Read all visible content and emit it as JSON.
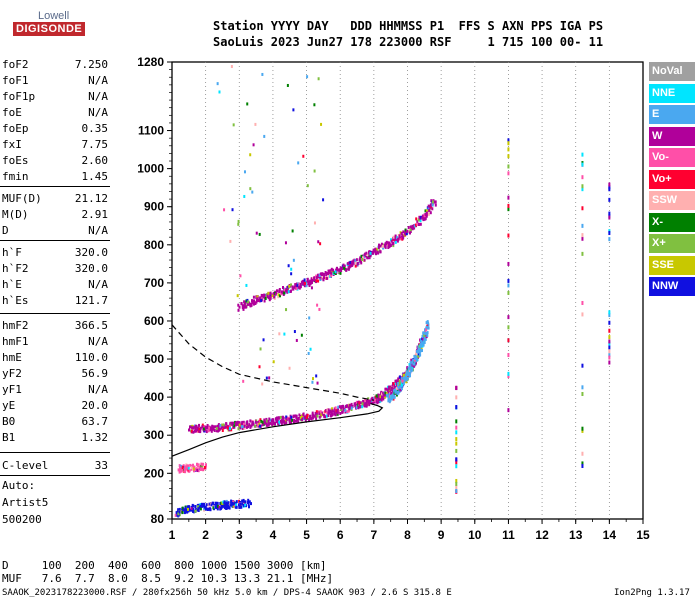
{
  "logo": {
    "top": "Lowell",
    "main": "DIGISONDE"
  },
  "header": {
    "line1": "Station YYYY DAY   DDD HHMMSS P1  FFS S AXN PPS IGA PS",
    "line2": "SaoLuis 2023 Jun27 178 223000 RSF     1 715 100 00- 11"
  },
  "params": [
    {
      "k": "foF2",
      "v": "7.250"
    },
    {
      "k": "foF1",
      "v": "N/A"
    },
    {
      "k": "foF1p",
      "v": "N/A"
    },
    {
      "k": "foE",
      "v": "N/A"
    },
    {
      "k": "foEp",
      "v": "0.35"
    },
    {
      "k": "fxI",
      "v": "7.75"
    },
    {
      "k": "foEs",
      "v": "2.60"
    },
    {
      "k": "fmin",
      "v": "1.45"
    },
    {
      "k": "MUF(D)",
      "v": "21.12"
    },
    {
      "k": "M(D)",
      "v": "2.91"
    },
    {
      "k": "D",
      "v": "N/A"
    },
    {
      "k": "h`F",
      "v": "320.0"
    },
    {
      "k": "h`F2",
      "v": "320.0"
    },
    {
      "k": "h`E",
      "v": "N/A"
    },
    {
      "k": "h`Es",
      "v": "121.7"
    },
    {
      "k": "hmF2",
      "v": "366.5"
    },
    {
      "k": "hmF1",
      "v": "N/A"
    },
    {
      "k": "hmE",
      "v": "110.0"
    },
    {
      "k": "yF2",
      "v": "56.9"
    },
    {
      "k": "yF1",
      "v": "N/A"
    },
    {
      "k": "yE",
      "v": "20.0"
    },
    {
      "k": "B0",
      "v": "63.7"
    },
    {
      "k": "B1",
      "v": "1.32"
    },
    {
      "k": "C-level",
      "v": "33"
    }
  ],
  "auto": {
    "label": "Auto:",
    "software": "Artist5",
    "version": "500200"
  },
  "legend": [
    {
      "label": "NoVal",
      "color": "#a0a0a0"
    },
    {
      "label": "NNE",
      "color": "#00e5ff"
    },
    {
      "label": "E",
      "color": "#4aa8f0"
    },
    {
      "label": "W",
      "color": "#b0009a"
    },
    {
      "label": "Vo-",
      "color": "#ff4fa8"
    },
    {
      "label": "Vo+",
      "color": "#ff0030"
    },
    {
      "label": "SSW",
      "color": "#ffb0b0"
    },
    {
      "label": "X-",
      "color": "#008000"
    },
    {
      "label": "X+",
      "color": "#80c040"
    },
    {
      "label": "SSE",
      "color": "#c8c800"
    },
    {
      "label": "NNW",
      "color": "#1010e0"
    }
  ],
  "footer": {
    "d_row": "D     100  200  400  600  800 1000 1500 3000 [km]",
    "muf_row": "MUF   7.6  7.7  8.0  8.5  9.2 10.3 13.3 21.1 [MHz]",
    "file_line": "SAAOK_2023178223000.RSF / 280fx256h 50 kHz 5.0 km / DPS-4 SAAOK 903 / 2.6 S 315.8 E",
    "version": "Ion2Png 1.3.17"
  },
  "chart_data": {
    "type": "scatter",
    "xlim": [
      1,
      15
    ],
    "ylim": [
      80,
      1280
    ],
    "x_ticks": [
      1,
      2,
      3,
      4,
      5,
      6,
      7,
      8,
      9,
      10,
      11,
      12,
      13,
      14,
      15
    ],
    "y_ticks": [
      80,
      200,
      300,
      400,
      500,
      600,
      700,
      800,
      900,
      1000,
      1100,
      1280
    ],
    "grid": "vertical-dotted",
    "traces": [
      {
        "name": "F2 O-mode",
        "color": "#b0009a",
        "points": [
          [
            1.5,
            320
          ],
          [
            2,
            322
          ],
          [
            2.5,
            325
          ],
          [
            3,
            330
          ],
          [
            3.5,
            335
          ],
          [
            4,
            340
          ],
          [
            4.5,
            345
          ],
          [
            5,
            352
          ],
          [
            5.5,
            360
          ],
          [
            6,
            370
          ],
          [
            6.5,
            382
          ],
          [
            7,
            395
          ],
          [
            7.25,
            410
          ],
          [
            7.5,
            428
          ],
          [
            7.75,
            445
          ],
          [
            8,
            470
          ],
          [
            8.25,
            510
          ],
          [
            8.4,
            560
          ]
        ]
      },
      {
        "name": "F2 X-mode",
        "color": "#4aa8f0",
        "points": [
          [
            7.4,
            400
          ],
          [
            7.6,
            415
          ],
          [
            7.8,
            440
          ],
          [
            8.0,
            470
          ],
          [
            8.2,
            500
          ],
          [
            8.4,
            540
          ],
          [
            8.6,
            600
          ]
        ]
      },
      {
        "name": "F2 2-hop",
        "color": "#b0009a",
        "points": [
          [
            3,
            640
          ],
          [
            3.5,
            660
          ],
          [
            4,
            672
          ],
          [
            4.5,
            690
          ],
          [
            5,
            705
          ],
          [
            5.5,
            722
          ],
          [
            6,
            740
          ],
          [
            6.5,
            760
          ],
          [
            7,
            785
          ],
          [
            7.5,
            810
          ],
          [
            8,
            840
          ],
          [
            8.5,
            880
          ],
          [
            8.8,
            920
          ]
        ]
      },
      {
        "name": "Es",
        "color": "#1010e0",
        "points": [
          [
            1.1,
            100
          ],
          [
            1.5,
            110
          ],
          [
            2,
            115
          ],
          [
            2.5,
            120
          ],
          [
            2.8,
            122
          ],
          [
            3.3,
            125
          ]
        ]
      },
      {
        "name": "Es 2-hop",
        "color": "#ff4fa8",
        "points": [
          [
            1.2,
            215
          ],
          [
            1.5,
            218
          ],
          [
            2.0,
            222
          ]
        ]
      }
    ],
    "profile": [
      [
        1,
        245
      ],
      [
        1.5,
        262
      ],
      [
        2,
        280
      ],
      [
        2.5,
        295
      ],
      [
        3,
        307
      ],
      [
        4,
        322
      ],
      [
        5,
        335
      ],
      [
        6,
        346
      ],
      [
        6.8,
        356
      ],
      [
        7.15,
        363
      ],
      [
        7.25,
        372
      ],
      [
        7.1,
        378
      ],
      [
        6.9,
        383
      ]
    ],
    "dashed_profile": [
      [
        1,
        590
      ],
      [
        1.5,
        540
      ],
      [
        2,
        505
      ],
      [
        2.5,
        480
      ],
      [
        3,
        460
      ],
      [
        4,
        440
      ],
      [
        5,
        425
      ],
      [
        6,
        410
      ],
      [
        6.5,
        400
      ],
      [
        7,
        392
      ]
    ]
  }
}
